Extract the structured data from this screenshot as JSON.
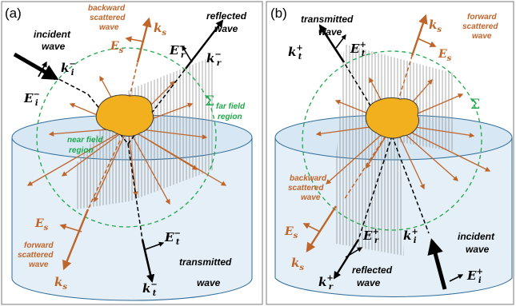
{
  "colors": {
    "incident": "#000000",
    "scattered": "#c0652a",
    "far_field": "#1fa84a",
    "particle": "#f2b01e",
    "particle_edge": "#3a3a3a",
    "substrate_fill": "#dbe9f3",
    "substrate_edge": "#2e6b9a",
    "hatch": "#8a8a8a"
  },
  "panel_a": {
    "tag": "(a)",
    "incident_label": [
      "incident",
      "wave"
    ],
    "k_incident": "k",
    "k_incident_sup": "−",
    "k_incident_sub": "i",
    "e_incident": "E",
    "e_incident_sup": "−",
    "e_incident_sub": "i",
    "backward_label": [
      "backward",
      "scattered",
      "wave"
    ],
    "k_s": "k",
    "k_s_sub": "s",
    "e_s": "E",
    "e_s_sub": "s",
    "reflected_label": [
      "reflected",
      "wave"
    ],
    "e_reflected": "E",
    "e_reflected_sup": "−",
    "e_reflected_sub": "r",
    "k_reflected": "k",
    "k_reflected_sup": "−",
    "k_reflected_sub": "r",
    "sigma": "Σ",
    "far_field_label": [
      "far field",
      "region"
    ],
    "near_field_label": [
      "near field",
      "region"
    ],
    "e_s_lower": "E",
    "e_s_lower_sub": "s",
    "forward_label": [
      "forward",
      "scattered",
      "wave"
    ],
    "k_s_lower": "k",
    "k_s_lower_sub": "s",
    "e_transmitted": "E",
    "e_transmitted_sup": "−",
    "e_transmitted_sub": "t",
    "transmitted_label": [
      "transmitted",
      "wave"
    ],
    "k_transmitted": "k",
    "k_transmitted_sup": "−",
    "k_transmitted_sub": "t"
  },
  "panel_b": {
    "tag": "(b)",
    "transmitted_label": [
      "transmitted",
      "wave"
    ],
    "k_transmitted": "k",
    "k_transmitted_sup": "+",
    "k_transmitted_sub": "t",
    "e_transmitted": "E",
    "e_transmitted_sup": "+",
    "e_transmitted_sub": "t",
    "k_s": "k",
    "k_s_sub": "s",
    "e_s": "E",
    "e_s_sub": "s",
    "forward_label": [
      "forward",
      "scattered",
      "wave"
    ],
    "sigma": "Σ",
    "backward_label": [
      "backward",
      "scattered",
      "wave"
    ],
    "e_s_lower": "E",
    "e_s_lower_sub": "s",
    "k_s_lower": "k",
    "k_s_lower_sub": "s",
    "e_reflected": "E",
    "e_reflected_sup": "+",
    "e_reflected_sub": "r",
    "reflected_label": [
      "reflected",
      "wave"
    ],
    "k_reflected": "k",
    "k_reflected_sup": "+",
    "k_reflected_sub": "r",
    "k_incident": "k",
    "k_incident_sup": "+",
    "k_incident_sub": "i",
    "incident_label": [
      "incident",
      "wave"
    ],
    "e_incident": "E",
    "e_incident_sup": "+",
    "e_incident_sub": "i"
  }
}
